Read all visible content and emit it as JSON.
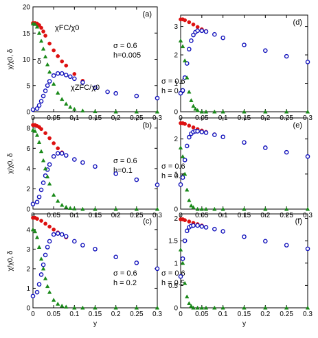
{
  "chart_data": [
    {
      "type": "scatter",
      "panel": "(a)",
      "params": [
        "σ = 0.6",
        "h=0.005"
      ],
      "xlabel": "y",
      "ylabel": "χ/χ0, δ",
      "xlim": [
        0,
        0.3
      ],
      "ylim": [
        0,
        20
      ],
      "xticks": [
        "0",
        "0.05",
        "0.1",
        "0.15",
        "0.2",
        "0.25",
        "0.3"
      ],
      "yticks": [
        "0",
        "5",
        "10",
        "15",
        "20"
      ],
      "curve_labels": {
        "fc": "χFC/χ0",
        "zfc": "χZFC/χ0",
        "delta": "δ"
      },
      "series": [
        {
          "name": "χFC/χ0",
          "color": "#dd1111",
          "marker": "circle-filled",
          "x": [
            0,
            0.005,
            0.01,
            0.015,
            0.02,
            0.025,
            0.03,
            0.04,
            0.05,
            0.06,
            0.07,
            0.08,
            0.1,
            0.12,
            0.15,
            0.18,
            0.2,
            0.25,
            0.3
          ],
          "y": [
            16.9,
            16.9,
            16.8,
            16.5,
            16.0,
            15.3,
            14.5,
            13.0,
            11.7,
            10.6,
            9.6,
            8.8,
            7.2,
            5.9,
            4.6,
            3.8,
            3.5,
            3.0,
            2.6
          ]
        },
        {
          "name": "χZFC/χ0",
          "color": "#1111bb",
          "marker": "circle-open",
          "x": [
            0,
            0.01,
            0.015,
            0.02,
            0.025,
            0.03,
            0.035,
            0.04,
            0.05,
            0.06,
            0.07,
            0.08,
            0.09,
            0.1,
            0.12,
            0.15,
            0.18,
            0.2,
            0.25,
            0.3
          ],
          "y": [
            0.4,
            0.6,
            1.2,
            2.0,
            3.0,
            4.0,
            5.0,
            5.8,
            6.9,
            7.3,
            7.3,
            7.0,
            6.7,
            6.3,
            5.6,
            4.6,
            3.8,
            3.5,
            3.0,
            2.6
          ]
        },
        {
          "name": "δ",
          "color": "#1a8a1a",
          "marker": "triangle",
          "x": [
            0,
            0.005,
            0.01,
            0.015,
            0.02,
            0.025,
            0.03,
            0.035,
            0.04,
            0.05,
            0.06,
            0.07,
            0.08,
            0.09,
            0.1,
            0.12,
            0.15,
            0.2,
            0.25,
            0.3
          ],
          "y": [
            16.8,
            16.7,
            16.2,
            15.0,
            13.5,
            12.0,
            10.5,
            9.0,
            7.6,
            5.3,
            3.6,
            2.4,
            1.5,
            0.9,
            0.5,
            0.2,
            0.05,
            0.0,
            0.0,
            0.0
          ]
        }
      ]
    },
    {
      "type": "scatter",
      "panel": "(b)",
      "params": [
        "σ = 0.6",
        "h=0.1"
      ],
      "xlabel": "y",
      "ylabel": "χ/χ0, δ",
      "xlim": [
        0,
        0.3
      ],
      "ylim": [
        0,
        9
      ],
      "xticks": [
        "0",
        "0.05",
        "0.1",
        "0.15",
        "0.2",
        "0.25",
        "0.3"
      ],
      "yticks": [
        "0",
        "2",
        "4",
        "6",
        "8"
      ],
      "series": [
        {
          "name": "χFC/χ0",
          "color": "#dd1111",
          "marker": "circle-filled",
          "x": [
            0,
            0.005,
            0.01,
            0.015,
            0.02,
            0.03,
            0.04,
            0.05,
            0.06,
            0.07,
            0.08,
            0.1,
            0.12,
            0.15,
            0.2,
            0.25,
            0.3
          ],
          "y": [
            8.3,
            8.3,
            8.2,
            8.1,
            7.9,
            7.5,
            7.0,
            6.5,
            6.0,
            5.6,
            5.3,
            4.9,
            4.6,
            4.2,
            3.5,
            2.9,
            2.4
          ]
        },
        {
          "name": "χZFC/χ0",
          "color": "#1111bb",
          "marker": "circle-open",
          "x": [
            0,
            0.01,
            0.015,
            0.02,
            0.025,
            0.03,
            0.035,
            0.04,
            0.05,
            0.06,
            0.07,
            0.08,
            0.1,
            0.12,
            0.15,
            0.2,
            0.25,
            0.3
          ],
          "y": [
            0.5,
            0.7,
            1.2,
            1.9,
            2.6,
            3.3,
            3.9,
            4.4,
            5.2,
            5.5,
            5.5,
            5.3,
            4.9,
            4.6,
            4.2,
            3.5,
            2.9,
            2.4
          ]
        },
        {
          "name": "δ",
          "color": "#1a8a1a",
          "marker": "triangle",
          "x": [
            0,
            0.005,
            0.01,
            0.015,
            0.02,
            0.025,
            0.03,
            0.035,
            0.04,
            0.05,
            0.06,
            0.07,
            0.08,
            0.09,
            0.1,
            0.12,
            0.15,
            0.2,
            0.25,
            0.3
          ],
          "y": [
            7.8,
            7.7,
            7.3,
            6.6,
            5.7,
            4.8,
            4.0,
            3.2,
            2.5,
            1.4,
            0.8,
            0.4,
            0.2,
            0.1,
            0.05,
            0.0,
            0.0,
            0.0,
            0.0,
            0.0
          ]
        }
      ]
    },
    {
      "type": "scatter",
      "panel": "(c)",
      "params": [
        "σ = 0.6",
        "h = 0.2"
      ],
      "xlabel": "y",
      "ylabel": "χ/χ0, δ",
      "xlim": [
        0,
        0.3
      ],
      "ylim": [
        0,
        4.8
      ],
      "xticks": [
        "0",
        "0.05",
        "0.1",
        "0.15",
        "0.2",
        "0.25",
        "0.3"
      ],
      "yticks": [
        "0",
        "1",
        "2",
        "3",
        "4"
      ],
      "series": [
        {
          "name": "χFC/χ0",
          "color": "#dd1111",
          "marker": "circle-filled",
          "x": [
            0,
            0.005,
            0.01,
            0.02,
            0.03,
            0.04,
            0.05,
            0.06,
            0.08,
            0.1,
            0.12,
            0.15,
            0.2,
            0.25,
            0.3
          ],
          "y": [
            4.6,
            4.6,
            4.55,
            4.45,
            4.3,
            4.15,
            4.0,
            3.85,
            3.6,
            3.4,
            3.2,
            3.0,
            2.6,
            2.3,
            2.0
          ]
        },
        {
          "name": "χZFC/χ0",
          "color": "#1111bb",
          "marker": "circle-open",
          "x": [
            0,
            0.01,
            0.015,
            0.02,
            0.025,
            0.03,
            0.035,
            0.04,
            0.05,
            0.06,
            0.07,
            0.08,
            0.1,
            0.12,
            0.15,
            0.2,
            0.25,
            0.3
          ],
          "y": [
            0.6,
            0.8,
            1.2,
            1.7,
            2.2,
            2.7,
            3.1,
            3.4,
            3.75,
            3.8,
            3.75,
            3.65,
            3.4,
            3.2,
            3.0,
            2.6,
            2.3,
            2.0
          ]
        },
        {
          "name": "δ",
          "color": "#1a8a1a",
          "marker": "triangle",
          "x": [
            0,
            0.005,
            0.01,
            0.015,
            0.02,
            0.025,
            0.03,
            0.035,
            0.04,
            0.05,
            0.06,
            0.07,
            0.08,
            0.1,
            0.12,
            0.15,
            0.2,
            0.25,
            0.3
          ],
          "y": [
            4.0,
            3.9,
            3.6,
            3.1,
            2.5,
            2.0,
            1.5,
            1.1,
            0.8,
            0.4,
            0.2,
            0.1,
            0.05,
            0.0,
            0.0,
            0.0,
            0.0,
            0.0,
            0.0
          ]
        }
      ]
    },
    {
      "type": "scatter",
      "panel": "(d)",
      "params": [
        "σ = 0.6",
        "h = 0.3"
      ],
      "xlabel": "y",
      "ylabel": "",
      "xlim": [
        0,
        0.3
      ],
      "ylim": [
        0,
        3.4
      ],
      "xticks": [
        "0",
        "0.05",
        "0.1",
        "0.15",
        "0.2",
        "0.25",
        "0.3"
      ],
      "yticks": [
        "0",
        "1",
        "2",
        "3"
      ],
      "series": [
        {
          "name": "χFC/χ0",
          "color": "#dd1111",
          "marker": "circle-filled",
          "x": [
            0,
            0.005,
            0.01,
            0.02,
            0.03,
            0.04,
            0.05,
            0.06,
            0.08,
            0.1,
            0.15,
            0.2,
            0.25,
            0.3
          ],
          "y": [
            3.25,
            3.25,
            3.22,
            3.15,
            3.07,
            2.98,
            2.9,
            2.84,
            2.72,
            2.6,
            2.35,
            2.15,
            1.95,
            1.75
          ]
        },
        {
          "name": "χZFC/χ0",
          "color": "#1111bb",
          "marker": "circle-open",
          "x": [
            0,
            0.005,
            0.01,
            0.015,
            0.02,
            0.025,
            0.03,
            0.035,
            0.04,
            0.05,
            0.06,
            0.08,
            0.1,
            0.15,
            0.2,
            0.25,
            0.3
          ],
          "y": [
            0.65,
            0.75,
            1.2,
            1.7,
            2.2,
            2.5,
            2.7,
            2.8,
            2.85,
            2.85,
            2.82,
            2.72,
            2.6,
            2.35,
            2.15,
            1.95,
            1.75
          ]
        },
        {
          "name": "δ",
          "color": "#1a8a1a",
          "marker": "triangle",
          "x": [
            0,
            0.005,
            0.01,
            0.015,
            0.02,
            0.025,
            0.03,
            0.035,
            0.04,
            0.05,
            0.06,
            0.08,
            0.1,
            0.15,
            0.2,
            0.25,
            0.3
          ],
          "y": [
            2.5,
            2.3,
            1.8,
            1.2,
            0.7,
            0.4,
            0.2,
            0.1,
            0.05,
            0.0,
            0.0,
            0.0,
            0.0,
            0.0,
            0.0,
            0.0,
            0.0
          ]
        }
      ]
    },
    {
      "type": "scatter",
      "panel": "(e)",
      "params": [
        "σ = 0.6",
        "h = 0.4"
      ],
      "xlabel": "y",
      "ylabel": "",
      "xlim": [
        0,
        0.3
      ],
      "ylim": [
        0,
        2.6
      ],
      "xticks": [
        "0",
        "0.05",
        "0.1",
        "0.15",
        "0.2",
        "0.25",
        "0.3"
      ],
      "yticks": [
        "0",
        "1",
        "2"
      ],
      "series": [
        {
          "name": "χFC/χ0",
          "color": "#dd1111",
          "marker": "circle-filled",
          "x": [
            0,
            0.005,
            0.01,
            0.02,
            0.03,
            0.04,
            0.05,
            0.06,
            0.08,
            0.1,
            0.15,
            0.2,
            0.25,
            0.3
          ],
          "y": [
            2.45,
            2.45,
            2.43,
            2.38,
            2.33,
            2.28,
            2.24,
            2.2,
            2.13,
            2.06,
            1.9,
            1.75,
            1.62,
            1.5
          ]
        },
        {
          "name": "χZFC/χ0",
          "color": "#1111bb",
          "marker": "circle-open",
          "x": [
            0,
            0.005,
            0.01,
            0.015,
            0.02,
            0.025,
            0.03,
            0.035,
            0.04,
            0.05,
            0.06,
            0.08,
            0.1,
            0.15,
            0.2,
            0.25,
            0.3
          ],
          "y": [
            0.7,
            0.9,
            1.4,
            1.8,
            2.05,
            2.15,
            2.2,
            2.22,
            2.22,
            2.2,
            2.18,
            2.12,
            2.06,
            1.9,
            1.75,
            1.62,
            1.5
          ]
        },
        {
          "name": "δ",
          "color": "#1a8a1a",
          "marker": "triangle",
          "x": [
            0,
            0.005,
            0.01,
            0.015,
            0.02,
            0.025,
            0.03,
            0.04,
            0.05,
            0.06,
            0.08,
            0.1,
            0.15,
            0.2,
            0.25,
            0.3
          ],
          "y": [
            1.75,
            1.5,
            1.0,
            0.55,
            0.25,
            0.1,
            0.05,
            0.0,
            0.0,
            0.0,
            0.0,
            0.0,
            0.0,
            0.0,
            0.0,
            0.0
          ]
        }
      ]
    },
    {
      "type": "scatter",
      "panel": "(f)",
      "params": [
        "σ = 0.6",
        "h = 0.5"
      ],
      "xlabel": "y",
      "ylabel": "",
      "xlim": [
        0,
        0.3
      ],
      "ylim": [
        0,
        2.1
      ],
      "xticks": [
        "0",
        "0.05",
        "0.1",
        "0.15",
        "0.2",
        "0.25",
        "0.3"
      ],
      "yticks": [
        "0",
        "0.5",
        "1",
        "1.5",
        "2"
      ],
      "series": [
        {
          "name": "χFC/χ0",
          "color": "#dd1111",
          "marker": "circle-filled",
          "x": [
            0,
            0.005,
            0.01,
            0.02,
            0.03,
            0.04,
            0.05,
            0.06,
            0.08,
            0.1,
            0.15,
            0.2,
            0.25,
            0.3
          ],
          "y": [
            1.98,
            1.98,
            1.96,
            1.93,
            1.9,
            1.87,
            1.84,
            1.81,
            1.76,
            1.71,
            1.59,
            1.49,
            1.4,
            1.32
          ]
        },
        {
          "name": "χZFC/χ0",
          "color": "#1111bb",
          "marker": "circle-open",
          "x": [
            0,
            0.005,
            0.01,
            0.015,
            0.02,
            0.025,
            0.03,
            0.04,
            0.05,
            0.06,
            0.08,
            0.1,
            0.15,
            0.2,
            0.25,
            0.3
          ],
          "y": [
            0.7,
            1.1,
            1.5,
            1.72,
            1.8,
            1.83,
            1.84,
            1.84,
            1.82,
            1.8,
            1.76,
            1.71,
            1.59,
            1.49,
            1.4,
            1.32
          ]
        },
        {
          "name": "δ",
          "color": "#1a8a1a",
          "marker": "triangle",
          "x": [
            0,
            0.005,
            0.01,
            0.015,
            0.02,
            0.025,
            0.03,
            0.04,
            0.05,
            0.06,
            0.08,
            0.1,
            0.15,
            0.2,
            0.25,
            0.3
          ],
          "y": [
            1.3,
            1.0,
            0.55,
            0.25,
            0.1,
            0.04,
            0.0,
            0.0,
            0.0,
            0.0,
            0.0,
            0.0,
            0.0,
            0.0,
            0.0,
            0.0
          ]
        }
      ]
    }
  ]
}
